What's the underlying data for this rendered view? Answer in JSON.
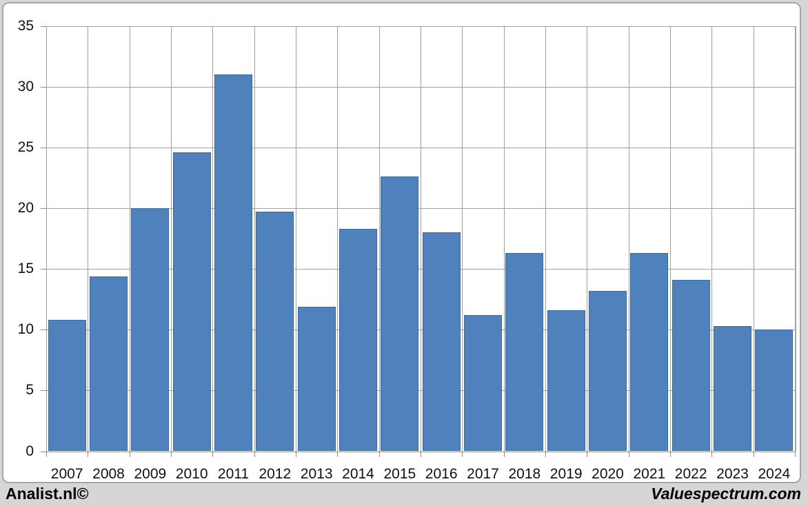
{
  "chart_data": {
    "type": "bar",
    "title": "",
    "xlabel": "",
    "ylabel": "",
    "categories": [
      "2007",
      "2008",
      "2009",
      "2010",
      "2011",
      "2012",
      "2013",
      "2014",
      "2015",
      "2016",
      "2017",
      "2018",
      "2019",
      "2020",
      "2021",
      "2022",
      "2023",
      "2024"
    ],
    "values": [
      10.8,
      14.4,
      20.0,
      24.6,
      31.0,
      19.7,
      11.9,
      18.3,
      22.6,
      18.0,
      11.2,
      16.3,
      11.6,
      13.2,
      16.3,
      14.1,
      10.3,
      10.0
    ],
    "ylim": [
      0,
      35
    ],
    "yticks": [
      0,
      5,
      10,
      15,
      20,
      25,
      30,
      35
    ],
    "grid": true,
    "legend": "none",
    "bar_color": "#4f81bd",
    "bar_border_color": "#3a6aa5",
    "gridline_color": "#a0a0a0",
    "plot_background": "#ffffff",
    "page_background": "#d6d6d6"
  },
  "footer": {
    "left_text": "Analist.nl©",
    "right_text": "Valuespectrum.com"
  }
}
